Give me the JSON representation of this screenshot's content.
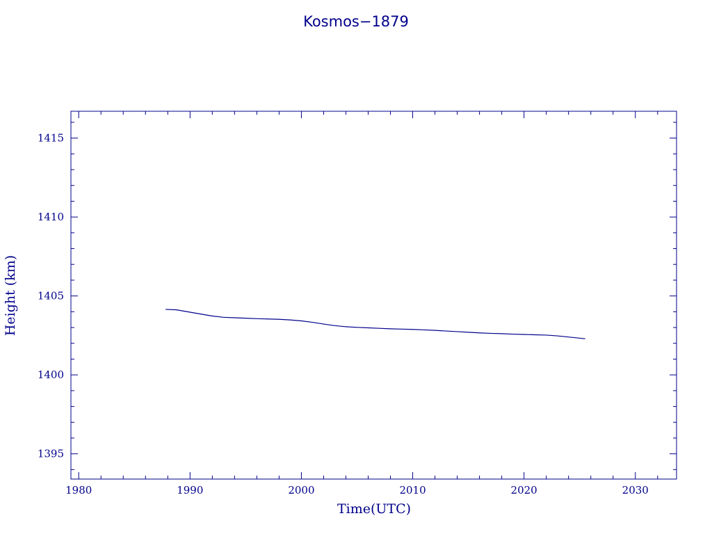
{
  "chart_data": {
    "type": "line",
    "title": "Kosmos−1879",
    "xlabel": "Time(UTC)",
    "ylabel": "Height (km)",
    "xlim": [
      1979.3,
      2033.7
    ],
    "ylim": [
      1393.4,
      1416.7
    ],
    "x_ticks": [
      1980,
      1990,
      2000,
      2010,
      2020,
      2030
    ],
    "x_tick_labels": [
      "1980",
      "1990",
      "2000",
      "2010",
      "2020",
      "2030"
    ],
    "y_ticks": [
      1395,
      1400,
      1405,
      1410,
      1415
    ],
    "y_tick_labels": [
      "1395",
      "1400",
      "1405",
      "1410",
      "1415"
    ],
    "grid": false,
    "series": [
      {
        "color": "#00008b",
        "x": [
          1987.8,
          1988.8,
          1990.0,
          1991.0,
          1992.0,
          1993.0,
          1994.0,
          1995.0,
          1996.0,
          1997.0,
          1998.0,
          1999.0,
          2000.0,
          2001.0,
          2002.0,
          2003.0,
          2004.0,
          2005.0,
          2006.0,
          2007.0,
          2008.0,
          2009.0,
          2010.0,
          2011.0,
          2012.0,
          2013.0,
          2014.0,
          2015.0,
          2016.0,
          2017.0,
          2018.0,
          2019.0,
          2020.0,
          2021.0,
          2022.0,
          2023.0,
          2024.0,
          2025.5
        ],
        "y": [
          1404.15,
          1404.12,
          1403.97,
          1403.85,
          1403.73,
          1403.65,
          1403.62,
          1403.59,
          1403.56,
          1403.54,
          1403.52,
          1403.48,
          1403.42,
          1403.33,
          1403.22,
          1403.12,
          1403.05,
          1403.01,
          1402.98,
          1402.95,
          1402.92,
          1402.9,
          1402.88,
          1402.85,
          1402.82,
          1402.78,
          1402.74,
          1402.7,
          1402.66,
          1402.63,
          1402.61,
          1402.58,
          1402.56,
          1402.54,
          1402.52,
          1402.47,
          1402.4,
          1402.29
        ]
      }
    ]
  }
}
